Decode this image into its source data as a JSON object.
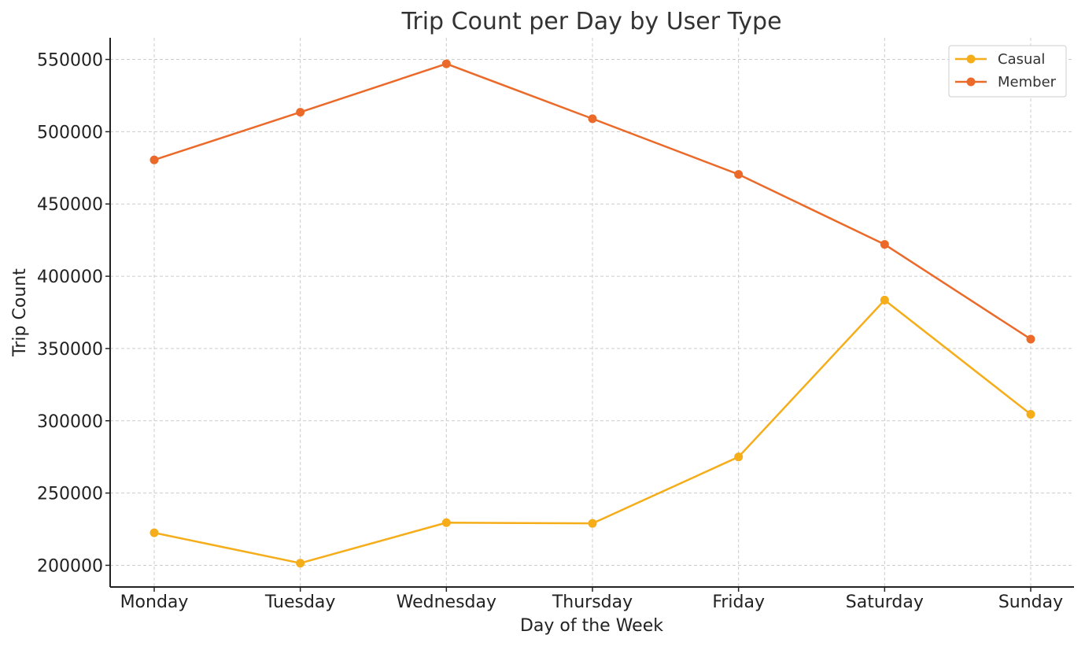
{
  "chart_data": {
    "type": "line",
    "title": "Trip Count per Day by User Type",
    "xlabel": "Day of the Week",
    "ylabel": "Trip Count",
    "categories": [
      "Monday",
      "Tuesday",
      "Wednesday",
      "Thursday",
      "Friday",
      "Saturday",
      "Sunday"
    ],
    "ylim": [
      185000,
      565000
    ],
    "yticks": [
      200000,
      250000,
      300000,
      350000,
      400000,
      450000,
      500000,
      550000
    ],
    "ytick_labels": [
      "200000",
      "250000",
      "300000",
      "350000",
      "400000",
      "450000",
      "500000",
      "550000"
    ],
    "grid": true,
    "legend_position": "top-right",
    "series": [
      {
        "name": "Casual",
        "color": "#F5AD1A",
        "values": [
          222500,
          201500,
          229500,
          229000,
          275000,
          383500,
          304500
        ]
      },
      {
        "name": "Member",
        "color": "#EB6A2A",
        "values": [
          480500,
          513500,
          547000,
          509000,
          470500,
          422000,
          356500
        ]
      }
    ]
  }
}
